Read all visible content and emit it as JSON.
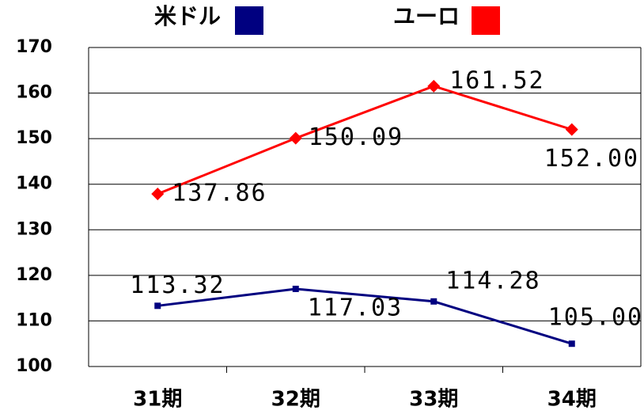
{
  "chart_data": {
    "type": "line",
    "categories": [
      "31期",
      "32期",
      "33期",
      "34期"
    ],
    "series": [
      {
        "name": "米ドル",
        "color": "#000080",
        "values": [
          113.32,
          117.03,
          114.28,
          105.0
        ],
        "value_labels": [
          "113.32",
          "117.03",
          "114.28",
          "105.00"
        ]
      },
      {
        "name": "ユーロ",
        "color": "#ff0000",
        "values": [
          137.86,
          150.09,
          161.52,
          152.0
        ],
        "value_labels": [
          "137.86",
          "150.09",
          "161.52",
          "152.00"
        ]
      }
    ],
    "ylim": [
      100,
      170
    ],
    "yticks": [
      100,
      110,
      120,
      130,
      140,
      150,
      160,
      170
    ],
    "grid": true
  }
}
